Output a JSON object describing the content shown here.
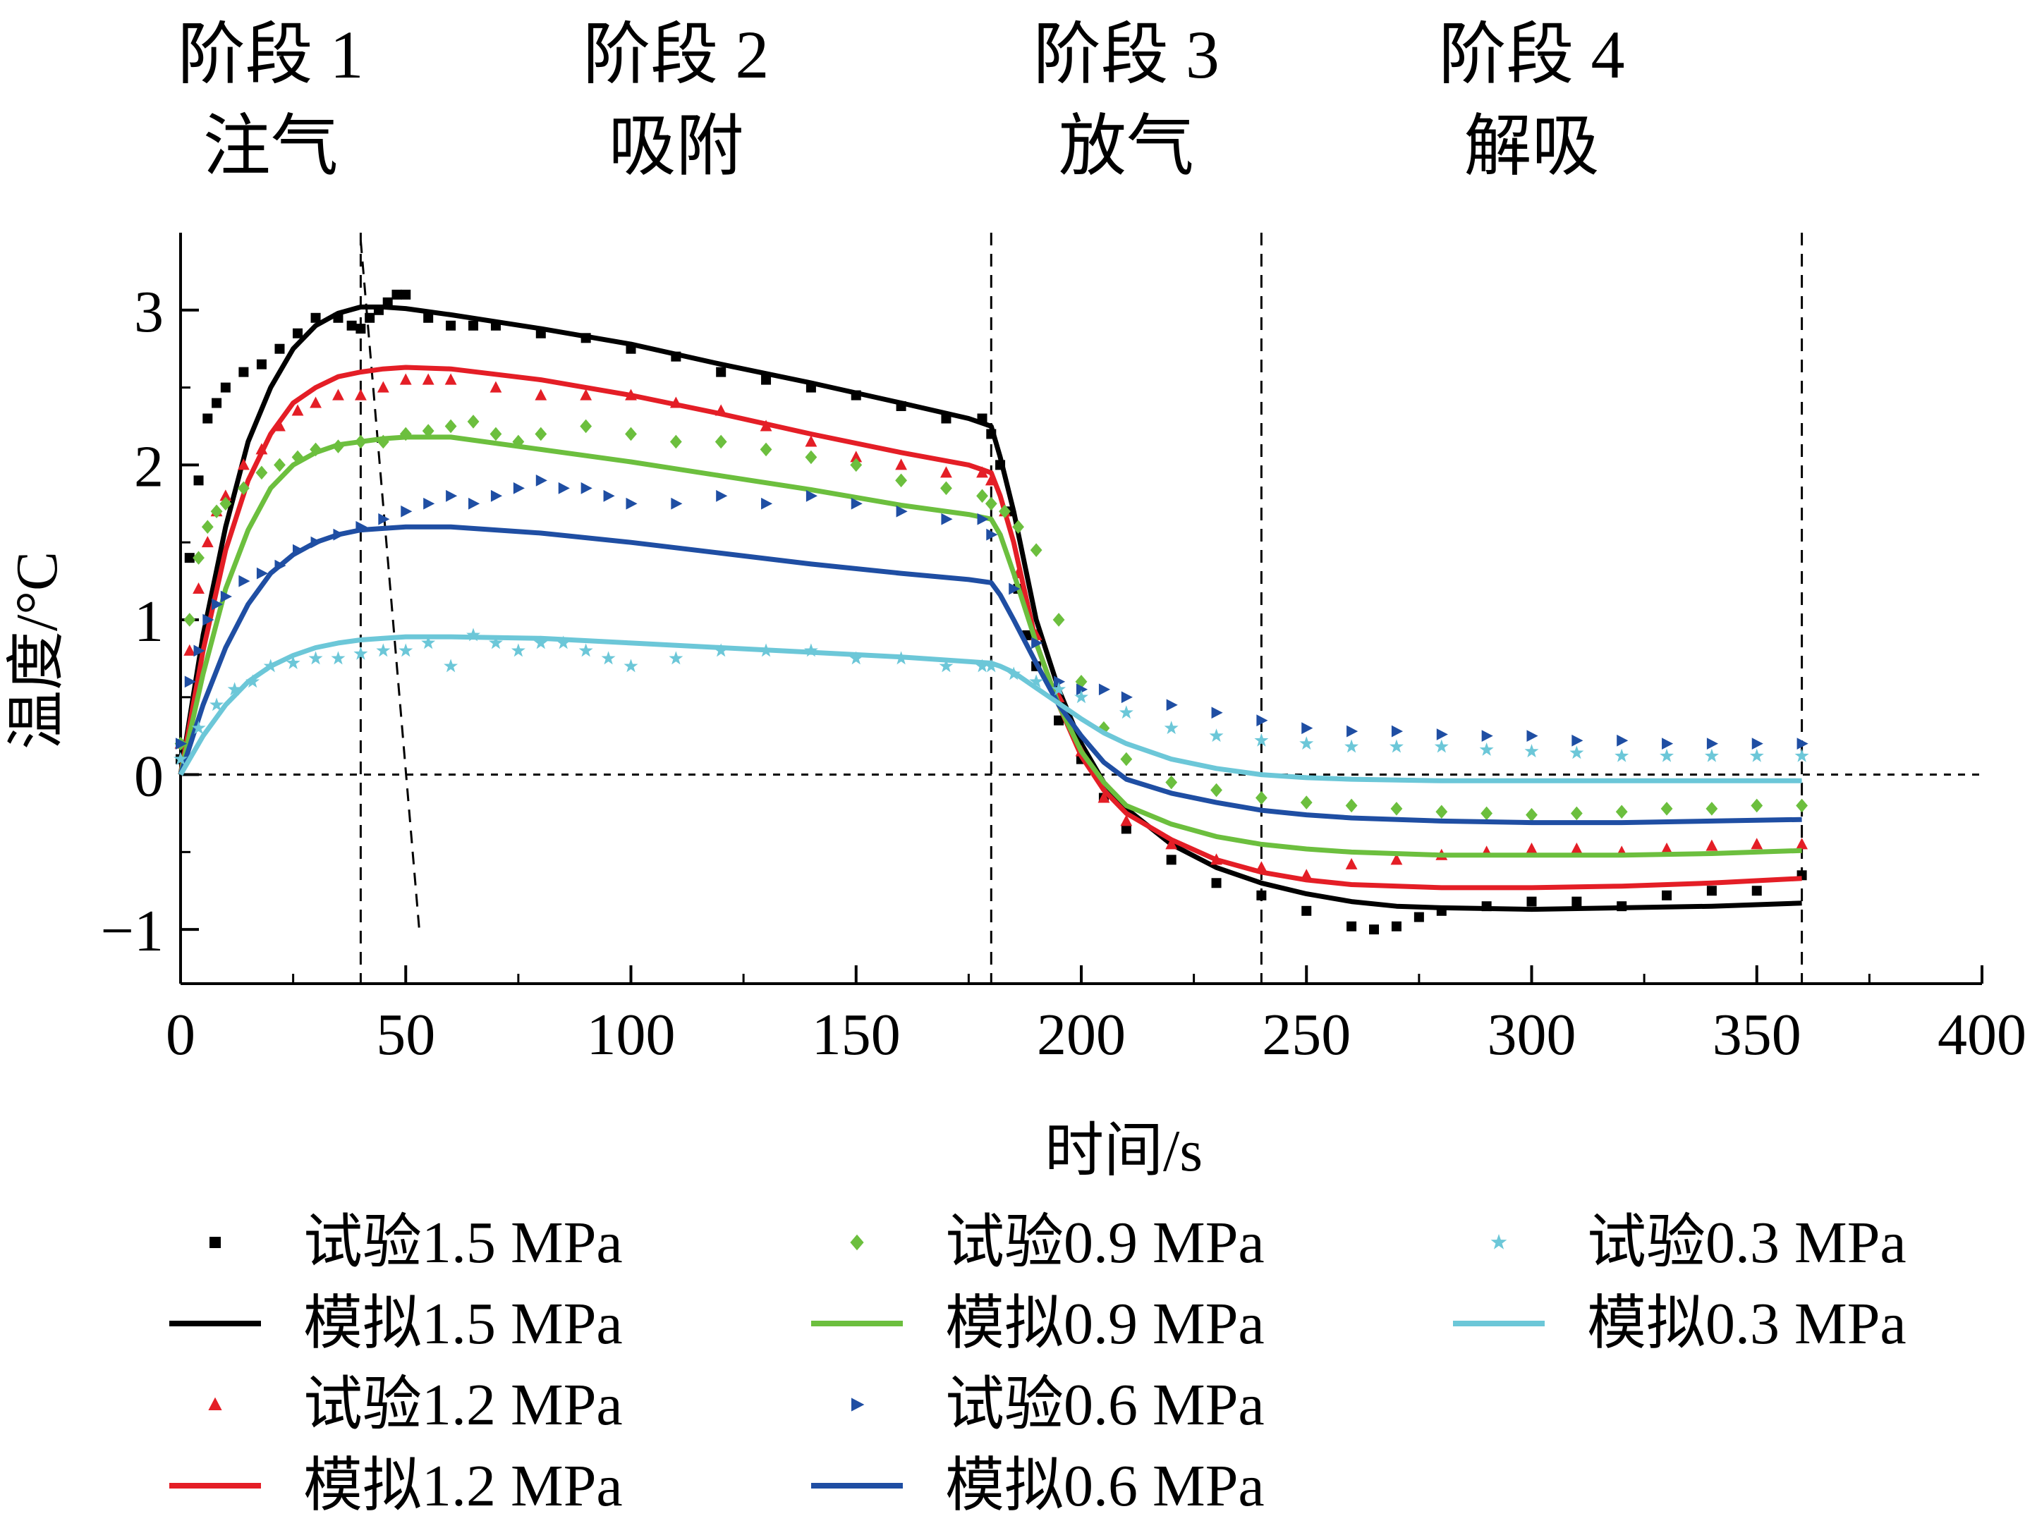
{
  "chart_data": {
    "type": "line+scatter",
    "xlabel": "时间/s",
    "ylabel": "温度/°C",
    "xlim": [
      0,
      400
    ],
    "ylim": [
      -1.35,
      3.5
    ],
    "x_ticks": [
      0,
      50,
      100,
      150,
      200,
      250,
      300,
      350,
      400
    ],
    "y_ticks": [
      -1,
      0,
      1,
      2,
      3
    ],
    "grid": false,
    "legend_position": "bottom",
    "phases": [
      {
        "stage": "阶段 1",
        "name": "注气"
      },
      {
        "stage": "阶段 2",
        "name": "吸附"
      },
      {
        "stage": "阶段 3",
        "name": "放气"
      },
      {
        "stage": "阶段 4",
        "name": "解吸"
      }
    ],
    "phase_boundaries_x": [
      40,
      180,
      240,
      360
    ],
    "zero_line_y": 0,
    "series": [
      {
        "name": "试验1.5 MPa",
        "kind": "scatter",
        "marker": "square",
        "color": "#000000",
        "x": [
          0,
          2,
          4,
          6,
          8,
          10,
          14,
          18,
          22,
          26,
          30,
          35,
          38,
          40,
          42,
          44,
          46,
          48,
          50,
          55,
          60,
          65,
          70,
          80,
          90,
          100,
          110,
          120,
          130,
          140,
          150,
          160,
          170,
          178,
          180,
          182,
          184,
          186,
          188,
          190,
          195,
          200,
          205,
          210,
          220,
          230,
          240,
          250,
          260,
          265,
          270,
          275,
          280,
          290,
          300,
          310,
          320,
          330,
          340,
          350,
          360
        ],
        "y": [
          0.1,
          1.4,
          1.9,
          2.3,
          2.4,
          2.5,
          2.6,
          2.65,
          2.75,
          2.85,
          2.95,
          2.95,
          2.9,
          2.88,
          2.95,
          3.0,
          3.05,
          3.1,
          3.1,
          2.95,
          2.9,
          2.9,
          2.9,
          2.85,
          2.82,
          2.75,
          2.7,
          2.6,
          2.55,
          2.5,
          2.45,
          2.38,
          2.3,
          2.3,
          2.2,
          2.0,
          1.7,
          1.2,
          0.9,
          0.7,
          0.35,
          0.1,
          -0.15,
          -0.35,
          -0.55,
          -0.7,
          -0.78,
          -0.88,
          -0.98,
          -1.0,
          -0.98,
          -0.92,
          -0.88,
          -0.85,
          -0.82,
          -0.82,
          -0.85,
          -0.78,
          -0.75,
          -0.75,
          -0.65
        ]
      },
      {
        "name": "模拟1.5 MPa",
        "kind": "line",
        "color": "#000000",
        "x": [
          0,
          5,
          10,
          15,
          20,
          25,
          30,
          35,
          40,
          45,
          50,
          60,
          80,
          100,
          120,
          140,
          160,
          175,
          180,
          182,
          185,
          190,
          195,
          200,
          205,
          210,
          220,
          230,
          240,
          250,
          260,
          270,
          280,
          300,
          320,
          340,
          360
        ],
        "y": [
          0,
          0.9,
          1.6,
          2.15,
          2.5,
          2.75,
          2.9,
          2.98,
          3.02,
          3.02,
          3.01,
          2.97,
          2.88,
          2.78,
          2.65,
          2.53,
          2.4,
          2.3,
          2.25,
          2.05,
          1.7,
          1.0,
          0.55,
          0.2,
          -0.05,
          -0.22,
          -0.45,
          -0.6,
          -0.7,
          -0.77,
          -0.82,
          -0.85,
          -0.86,
          -0.87,
          -0.86,
          -0.85,
          -0.83
        ]
      },
      {
        "name": "试验1.2 MPa",
        "kind": "scatter",
        "marker": "triangle",
        "color": "#e41e26",
        "x": [
          0,
          2,
          4,
          6,
          8,
          10,
          14,
          18,
          22,
          26,
          30,
          35,
          40,
          45,
          50,
          55,
          60,
          70,
          80,
          90,
          100,
          110,
          120,
          130,
          140,
          150,
          160,
          170,
          178,
          180,
          183,
          186,
          190,
          195,
          200,
          205,
          210,
          220,
          230,
          240,
          250,
          260,
          270,
          280,
          290,
          300,
          310,
          320,
          330,
          340,
          350,
          360
        ],
        "y": [
          0.2,
          0.8,
          1.2,
          1.5,
          1.7,
          1.8,
          2.0,
          2.1,
          2.25,
          2.35,
          2.4,
          2.45,
          2.45,
          2.5,
          2.55,
          2.55,
          2.55,
          2.5,
          2.45,
          2.45,
          2.45,
          2.4,
          2.35,
          2.25,
          2.15,
          2.05,
          2.0,
          1.95,
          1.95,
          1.9,
          1.7,
          1.3,
          0.9,
          0.5,
          0.15,
          -0.15,
          -0.3,
          -0.45,
          -0.55,
          -0.6,
          -0.65,
          -0.58,
          -0.55,
          -0.52,
          -0.5,
          -0.48,
          -0.48,
          -0.5,
          -0.48,
          -0.46,
          -0.45,
          -0.45
        ]
      },
      {
        "name": "模拟1.2 MPa",
        "kind": "line",
        "color": "#e41e26",
        "x": [
          0,
          5,
          10,
          15,
          20,
          25,
          30,
          35,
          40,
          45,
          50,
          60,
          80,
          100,
          120,
          140,
          160,
          175,
          180,
          182,
          185,
          190,
          195,
          200,
          205,
          210,
          220,
          230,
          240,
          250,
          260,
          280,
          300,
          320,
          340,
          360
        ],
        "y": [
          0,
          0.8,
          1.45,
          1.9,
          2.2,
          2.4,
          2.5,
          2.57,
          2.6,
          2.62,
          2.63,
          2.62,
          2.55,
          2.45,
          2.33,
          2.2,
          2.08,
          2.0,
          1.95,
          1.8,
          1.5,
          0.85,
          0.45,
          0.12,
          -0.1,
          -0.25,
          -0.42,
          -0.55,
          -0.63,
          -0.68,
          -0.71,
          -0.73,
          -0.73,
          -0.72,
          -0.7,
          -0.67
        ]
      },
      {
        "name": "试验0.9 MPa",
        "kind": "scatter",
        "marker": "diamond",
        "color": "#6cbf3e",
        "x": [
          0,
          2,
          4,
          6,
          8,
          10,
          14,
          18,
          22,
          26,
          30,
          35,
          40,
          45,
          50,
          55,
          60,
          65,
          70,
          75,
          80,
          90,
          100,
          110,
          120,
          130,
          140,
          150,
          160,
          170,
          178,
          180,
          183,
          186,
          190,
          195,
          200,
          205,
          210,
          220,
          230,
          240,
          250,
          260,
          270,
          280,
          290,
          300,
          310,
          320,
          330,
          340,
          350,
          360
        ],
        "y": [
          0.2,
          1.0,
          1.4,
          1.6,
          1.7,
          1.75,
          1.85,
          1.95,
          2.0,
          2.05,
          2.1,
          2.12,
          2.15,
          2.15,
          2.2,
          2.22,
          2.25,
          2.28,
          2.2,
          2.15,
          2.2,
          2.25,
          2.2,
          2.15,
          2.15,
          2.1,
          2.05,
          2.0,
          1.9,
          1.85,
          1.8,
          1.75,
          1.7,
          1.6,
          1.45,
          1.0,
          0.6,
          0.3,
          0.1,
          -0.05,
          -0.1,
          -0.15,
          -0.18,
          -0.2,
          -0.22,
          -0.24,
          -0.25,
          -0.26,
          -0.25,
          -0.24,
          -0.22,
          -0.22,
          -0.2,
          -0.2
        ]
      },
      {
        "name": "模拟0.9 MPa",
        "kind": "line",
        "color": "#6cbf3e",
        "x": [
          0,
          5,
          10,
          15,
          20,
          25,
          30,
          35,
          40,
          45,
          50,
          60,
          80,
          100,
          120,
          140,
          160,
          175,
          180,
          182,
          185,
          190,
          195,
          200,
          205,
          210,
          220,
          230,
          240,
          250,
          260,
          280,
          300,
          320,
          340,
          360
        ],
        "y": [
          0,
          0.65,
          1.2,
          1.58,
          1.85,
          2.0,
          2.08,
          2.13,
          2.15,
          2.17,
          2.18,
          2.18,
          2.1,
          2.02,
          1.93,
          1.84,
          1.74,
          1.68,
          1.65,
          1.55,
          1.3,
          0.85,
          0.45,
          0.15,
          -0.05,
          -0.2,
          -0.32,
          -0.4,
          -0.45,
          -0.48,
          -0.5,
          -0.52,
          -0.52,
          -0.52,
          -0.51,
          -0.49
        ]
      },
      {
        "name": "试验0.6 MPa",
        "kind": "scatter",
        "marker": "triangle-right",
        "color": "#1f4ea3",
        "x": [
          0,
          2,
          4,
          6,
          8,
          10,
          14,
          18,
          22,
          26,
          30,
          35,
          40,
          45,
          50,
          55,
          60,
          65,
          70,
          75,
          80,
          85,
          90,
          95,
          100,
          110,
          120,
          130,
          140,
          150,
          160,
          170,
          178,
          180,
          185,
          190,
          195,
          200,
          205,
          210,
          220,
          230,
          240,
          250,
          260,
          270,
          280,
          290,
          300,
          310,
          320,
          330,
          340,
          350,
          360
        ],
        "y": [
          0.2,
          0.6,
          0.8,
          1.0,
          1.1,
          1.15,
          1.25,
          1.3,
          1.35,
          1.45,
          1.5,
          1.55,
          1.6,
          1.65,
          1.7,
          1.75,
          1.8,
          1.75,
          1.8,
          1.85,
          1.9,
          1.85,
          1.85,
          1.8,
          1.75,
          1.75,
          1.8,
          1.75,
          1.8,
          1.75,
          1.7,
          1.65,
          1.65,
          1.55,
          1.2,
          0.85,
          0.6,
          0.55,
          0.55,
          0.5,
          0.45,
          0.4,
          0.35,
          0.3,
          0.28,
          0.28,
          0.26,
          0.25,
          0.25,
          0.22,
          0.22,
          0.2,
          0.2,
          0.2,
          0.2
        ]
      },
      {
        "name": "模拟0.6 MPa",
        "kind": "line",
        "color": "#1f4ea3",
        "x": [
          0,
          5,
          10,
          15,
          20,
          25,
          30,
          35,
          40,
          45,
          50,
          60,
          80,
          100,
          120,
          140,
          160,
          175,
          180,
          182,
          185,
          190,
          195,
          200,
          205,
          210,
          220,
          230,
          240,
          250,
          260,
          280,
          300,
          320,
          340,
          360
        ],
        "y": [
          0,
          0.45,
          0.82,
          1.1,
          1.3,
          1.42,
          1.5,
          1.55,
          1.58,
          1.59,
          1.6,
          1.6,
          1.56,
          1.5,
          1.43,
          1.36,
          1.3,
          1.26,
          1.24,
          1.16,
          1.0,
          0.72,
          0.45,
          0.25,
          0.08,
          -0.03,
          -0.12,
          -0.18,
          -0.23,
          -0.26,
          -0.28,
          -0.3,
          -0.31,
          -0.31,
          -0.3,
          -0.29
        ]
      },
      {
        "name": "试验0.3 MPa",
        "kind": "scatter",
        "marker": "star",
        "color": "#6cc7d8",
        "x": [
          0,
          4,
          8,
          12,
          16,
          20,
          25,
          30,
          35,
          40,
          45,
          50,
          55,
          60,
          65,
          70,
          75,
          80,
          85,
          90,
          95,
          100,
          110,
          120,
          130,
          140,
          150,
          160,
          170,
          178,
          180,
          185,
          190,
          195,
          200,
          210,
          220,
          230,
          240,
          250,
          260,
          270,
          280,
          290,
          300,
          310,
          320,
          330,
          340,
          350,
          360
        ],
        "y": [
          0.1,
          0.3,
          0.45,
          0.55,
          0.6,
          0.7,
          0.72,
          0.75,
          0.75,
          0.78,
          0.8,
          0.8,
          0.85,
          0.7,
          0.9,
          0.85,
          0.8,
          0.85,
          0.85,
          0.8,
          0.75,
          0.7,
          0.75,
          0.8,
          0.8,
          0.8,
          0.75,
          0.75,
          0.7,
          0.7,
          0.7,
          0.65,
          0.6,
          0.55,
          0.5,
          0.4,
          0.3,
          0.25,
          0.22,
          0.2,
          0.18,
          0.18,
          0.18,
          0.16,
          0.15,
          0.14,
          0.12,
          0.12,
          0.12,
          0.12,
          0.12
        ]
      },
      {
        "name": "模拟0.3 MPa",
        "kind": "line",
        "color": "#6cc7d8",
        "x": [
          0,
          5,
          10,
          15,
          20,
          25,
          30,
          35,
          40,
          45,
          50,
          60,
          80,
          100,
          120,
          140,
          160,
          175,
          180,
          182,
          185,
          190,
          195,
          200,
          205,
          210,
          220,
          230,
          240,
          250,
          260,
          280,
          300,
          320,
          340,
          360
        ],
        "y": [
          0,
          0.25,
          0.45,
          0.6,
          0.7,
          0.77,
          0.82,
          0.85,
          0.87,
          0.88,
          0.89,
          0.89,
          0.88,
          0.85,
          0.82,
          0.79,
          0.76,
          0.73,
          0.72,
          0.7,
          0.66,
          0.56,
          0.46,
          0.36,
          0.27,
          0.2,
          0.1,
          0.04,
          0.0,
          -0.02,
          -0.03,
          -0.04,
          -0.04,
          -0.04,
          -0.04,
          -0.04
        ]
      }
    ],
    "legend": {
      "columns": [
        [
          "试验1.5 MPa",
          "模拟1.5 MPa",
          "试验1.2 MPa",
          "模拟1.2 MPa"
        ],
        [
          "试验0.9 MPa",
          "模拟0.9 MPa",
          "试验0.6 MPa",
          "模拟0.6 MPa"
        ],
        [
          "试验0.3 MPa",
          "模拟0.3 MPa"
        ]
      ]
    }
  }
}
